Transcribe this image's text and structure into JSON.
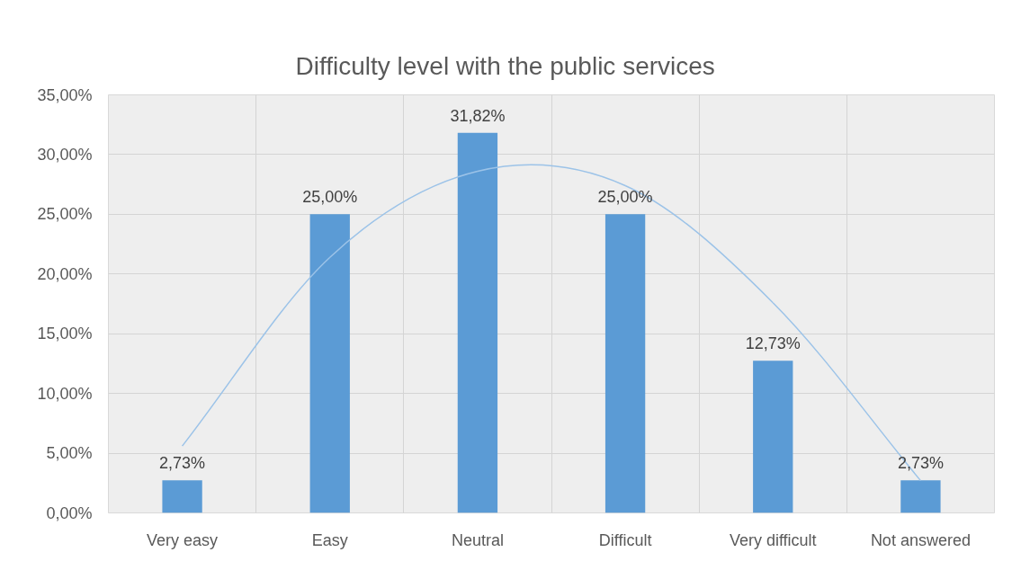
{
  "chart_data": {
    "type": "bar",
    "title": "Difficulty level with the public services",
    "categories": [
      "Very easy",
      "Easy",
      "Neutral",
      "Difficult",
      "Very difficult",
      "Not answered"
    ],
    "series": [
      {
        "color": "#5b9bd5",
        "values": [
          2.73,
          25,
          31.82,
          25,
          12.73,
          2.73
        ],
        "value_labels": [
          "2,73%",
          "25,00%",
          "31,82%",
          "25,00%",
          "12,73%",
          "2,73%"
        ]
      },
      {
        "type": "line",
        "color": "#9cc3e8",
        "values": [
          5.6,
          21.4,
          28.6,
          27.4,
          17.6,
          2.7
        ]
      }
    ],
    "ylim": [
      0,
      35
    ],
    "yticks": [
      {
        "value": 0,
        "label": "0,00%"
      },
      {
        "value": 5,
        "label": "5,00%"
      },
      {
        "value": 10,
        "label": "10,00%"
      },
      {
        "value": 15,
        "label": "15,00%"
      },
      {
        "value": 20,
        "label": "20,00%"
      },
      {
        "value": 25,
        "label": "25,00%"
      },
      {
        "value": 30,
        "label": "30,00%"
      },
      {
        "value": 35,
        "label": "35,00%"
      }
    ],
    "grid": true
  }
}
